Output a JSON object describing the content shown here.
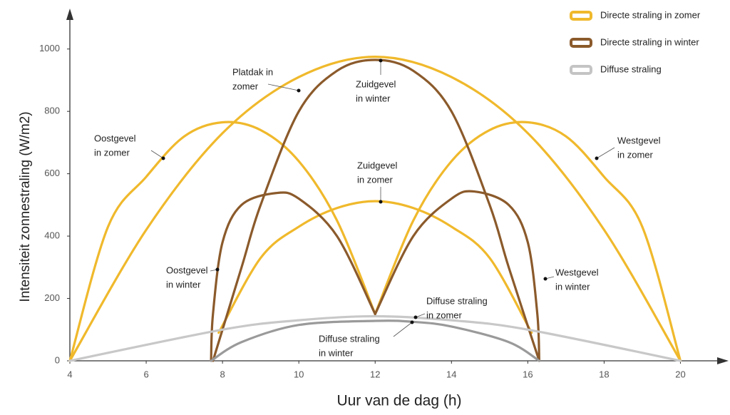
{
  "chart_data": {
    "type": "line",
    "x_label": "Uur van de dag (h)",
    "y_label": "Intensiteit  zonnestraling (W/m2)",
    "xlim": [
      4,
      21
    ],
    "ylim": [
      0,
      1100
    ],
    "xticks": [
      4,
      6,
      8,
      10,
      12,
      14,
      16,
      18,
      20
    ],
    "yticks": [
      0,
      200,
      400,
      600,
      800,
      1000
    ],
    "legend_position": "upper right",
    "legend": [
      {
        "name": "Directe straling in zomer",
        "color": "#f0b92c"
      },
      {
        "name": "Directe straling in winter",
        "color": "#8b5a2b"
      },
      {
        "name": "Diffuse straling",
        "color": "#c4c4c4"
      }
    ],
    "series": [
      {
        "label": [
          "Oostgevel",
          "in zomer"
        ],
        "color": "#f0b92c",
        "x": [
          4,
          5,
          6,
          7,
          8,
          9,
          10,
          11,
          12
        ],
        "values": [
          0,
          430,
          590,
          720,
          765,
          740,
          640,
          450,
          150
        ]
      },
      {
        "label": [
          "Westgevel",
          "in zomer"
        ],
        "color": "#f0b92c",
        "x": [
          12,
          13,
          14,
          15,
          16,
          17,
          18,
          19,
          20
        ],
        "values": [
          150,
          450,
          640,
          740,
          765,
          720,
          590,
          430,
          0
        ]
      },
      {
        "label": [
          "Platdak in",
          "zomer"
        ],
        "color": "#f0b92c",
        "x": [
          4,
          6,
          8,
          10,
          12,
          14,
          16,
          18,
          20
        ],
        "values": [
          0,
          420,
          730,
          910,
          975,
          910,
          730,
          420,
          0
        ]
      },
      {
        "label": [
          "Zuidgevel",
          "in zomer"
        ],
        "color": "#f0b92c",
        "x": [
          7.9,
          9,
          10,
          11,
          12,
          13,
          14,
          15,
          16.1
        ],
        "values": [
          90,
          330,
          430,
          490,
          512,
          490,
          430,
          330,
          90
        ]
      },
      {
        "label": [
          "Oostgevel",
          "in winter"
        ],
        "color": "#8b5a2b",
        "x": [
          7.7,
          7.75,
          8,
          8.5,
          9.4,
          10,
          11,
          12
        ],
        "values": [
          0,
          150,
          380,
          500,
          538,
          520,
          400,
          150
        ]
      },
      {
        "label": [
          "Westgevel",
          "in winter"
        ],
        "color": "#8b5a2b",
        "x": [
          12,
          13,
          14,
          14.6,
          15.5,
          16,
          16.25,
          16.3
        ],
        "values": [
          150,
          400,
          520,
          543,
          500,
          380,
          150,
          0
        ]
      },
      {
        "label": [
          "Zuidgevel",
          "in winter"
        ],
        "color": "#8b5a2b",
        "x": [
          7.75,
          8.5,
          9,
          10,
          11,
          12,
          13,
          14,
          15,
          15.5,
          16.3
        ],
        "values": [
          0,
          300,
          500,
          800,
          930,
          965,
          930,
          800,
          500,
          300,
          0
        ]
      },
      {
        "label": [
          "Diffuse straling",
          "in zomer"
        ],
        "color": "#c8c8c8",
        "x": [
          4,
          8,
          10,
          12,
          14,
          16,
          20
        ],
        "values": [
          0,
          100,
          130,
          143,
          130,
          100,
          0
        ]
      },
      {
        "label": [
          "Diffuse straling",
          "in winter"
        ],
        "color": "#9a9a9a",
        "x": [
          7.7,
          8.5,
          10,
          12,
          13,
          14,
          15.5,
          16.3
        ],
        "values": [
          0,
          60,
          115,
          128,
          125,
          110,
          60,
          0
        ]
      }
    ]
  }
}
